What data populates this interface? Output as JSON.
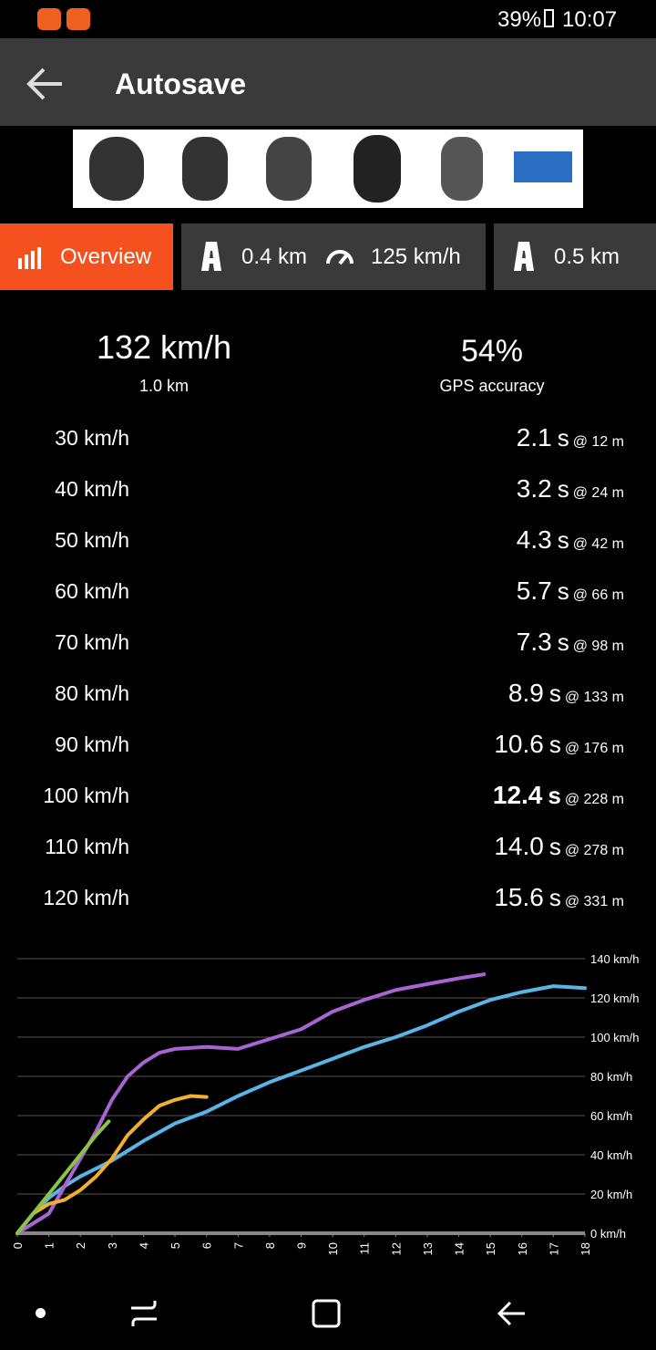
{
  "status_bar": {
    "battery": "39%",
    "time": "10:07"
  },
  "app_bar": {
    "title": "Autosave"
  },
  "tabs": [
    {
      "label": "Overview"
    },
    {
      "distance": "0.4 km",
      "speed": "125 km/h"
    },
    {
      "distance": "0.5 km"
    }
  ],
  "summary": {
    "top_speed": "132 km/h",
    "distance": "1.0 km",
    "gps_accuracy": "54%",
    "gps_label": "GPS accuracy"
  },
  "splits": [
    {
      "speed": "30 km/h",
      "time": "2.1",
      "unit": "s",
      "at": "@ 12 m"
    },
    {
      "speed": "40 km/h",
      "time": "3.2",
      "unit": "s",
      "at": "@ 24 m"
    },
    {
      "speed": "50 km/h",
      "time": "4.3",
      "unit": "s",
      "at": "@ 42 m"
    },
    {
      "speed": "60 km/h",
      "time": "5.7",
      "unit": "s",
      "at": "@ 66 m"
    },
    {
      "speed": "70 km/h",
      "time": "7.3",
      "unit": "s",
      "at": "@ 98 m"
    },
    {
      "speed": "80 km/h",
      "time": "8.9",
      "unit": "s",
      "at": "@ 133 m"
    },
    {
      "speed": "90 km/h",
      "time": "10.6",
      "unit": "s",
      "at": "@ 176 m"
    },
    {
      "speed": "100 km/h",
      "time": "12.4",
      "unit": "s",
      "at": "@ 228 m",
      "bold": true
    },
    {
      "speed": "110 km/h",
      "time": "14.0",
      "unit": "s",
      "at": "@ 278 m"
    },
    {
      "speed": "120 km/h",
      "time": "15.6",
      "unit": "s",
      "at": "@ 331 m"
    }
  ],
  "chart_data": {
    "type": "line",
    "xlim": [
      0,
      18
    ],
    "xticks": [
      0,
      1,
      2,
      3,
      4,
      5,
      6,
      7,
      8,
      9,
      10,
      11,
      12,
      13,
      14,
      15,
      16,
      17,
      18
    ],
    "ylim": [
      0,
      140
    ],
    "yticks": [
      {
        "value": 0,
        "label": "0 km/h"
      },
      {
        "value": 20,
        "label": "20 km/h"
      },
      {
        "value": 40,
        "label": "40 km/h"
      },
      {
        "value": 60,
        "label": "60 km/h"
      },
      {
        "value": 80,
        "label": "80 km/h"
      },
      {
        "value": 100,
        "label": "100 km/h"
      },
      {
        "value": 120,
        "label": "120 km/h"
      },
      {
        "value": 140,
        "label": "140 km/h"
      }
    ],
    "grid": true,
    "series": [
      {
        "color": "#5ab4e6",
        "x": [
          0,
          0.5,
          1,
          1.5,
          2,
          3,
          4,
          5,
          6,
          7,
          8,
          9,
          10,
          11,
          12,
          13,
          14,
          15,
          16,
          17,
          18
        ],
        "values": [
          0,
          10,
          18,
          24,
          29,
          37,
          47,
          56,
          62,
          70,
          77,
          83,
          89,
          95,
          100,
          106,
          113,
          119,
          123,
          126,
          125
        ]
      },
      {
        "color": "#a865d2",
        "x": [
          0,
          1,
          1.5,
          2,
          2.5,
          3,
          3.5,
          4,
          4.5,
          5,
          6,
          7,
          8,
          9,
          10,
          11,
          12,
          13,
          14,
          14.8
        ],
        "values": [
          0,
          10,
          24,
          38,
          52,
          68,
          80,
          87,
          92,
          94,
          95,
          94,
          99,
          104,
          113,
          119,
          124,
          127,
          130,
          132
        ]
      },
      {
        "color": "#f0b030",
        "x": [
          0,
          0.5,
          1,
          1.5,
          2,
          2.5,
          3,
          3.5,
          4,
          4.5,
          5,
          5.5,
          6
        ],
        "values": [
          0,
          10,
          15,
          17,
          22,
          29,
          38,
          50,
          58,
          65,
          68,
          70,
          69.5
        ]
      },
      {
        "color": "#8bc34a",
        "x": [
          0,
          0.5,
          1,
          1.5,
          2,
          2.5,
          2.9
        ],
        "values": [
          0,
          10,
          20,
          30,
          40,
          50,
          57
        ]
      }
    ]
  }
}
